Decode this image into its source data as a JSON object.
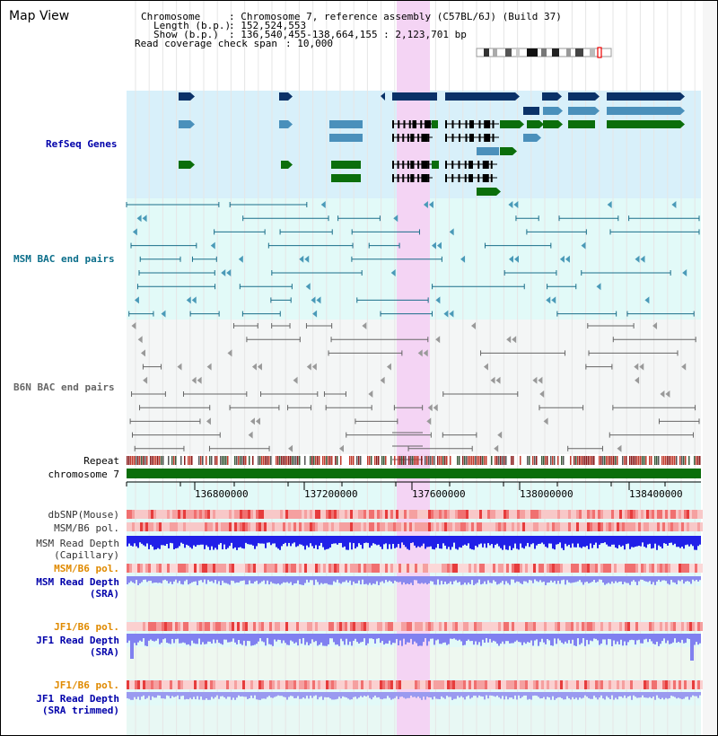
{
  "view": {
    "title": "Map View"
  },
  "info": {
    "chromosome_label": "Chromosome",
    "chromosome_value": ": Chromosome 7, reference assembly (C57BL/6J) (Build 37)",
    "length_label": "Length (b.p.)",
    "length_value": ": 152,524,553",
    "show_label": "Show (b.p.)",
    "show_value": ": 136,540,455-138,664,155 : 2,123,701 bp",
    "coverage_label": "Read coverage check span",
    "coverage_value": ": 10,000"
  },
  "tracks": {
    "refseq": "RefSeq Genes",
    "msm_bac": "MSM BAC end pairs",
    "b6n_bac": "B6N BAC end pairs",
    "repeat": "Repeat",
    "chromosome": "chromosome 7",
    "dbsnp": "dbSNP(Mouse)",
    "msm_b6_pol": "MSM/B6 pol.",
    "msm_depth_cap_1": "MSM Read Depth",
    "msm_depth_cap_2": "(Capillary)",
    "msm_b6_pol_sra": "MSM/B6 pol.",
    "msm_depth_sra_1": "MSM Read Depth",
    "msm_depth_sra_2": "(SRA)",
    "jf1_b6_pol": "JF1/B6 pol.",
    "jf1_depth_1": "JF1 Read Depth",
    "jf1_depth_2": "(SRA)",
    "jf1_b6_pol_t": "JF1/B6 pol.",
    "jf1_depth_t_1": "JF1 Read Depth",
    "jf1_depth_t_2": "(SRA trimmed)"
  },
  "axis": {
    "ticks": [
      "136800000",
      "137200000",
      "137600000",
      "138000000",
      "138400000"
    ]
  },
  "colors": {
    "refseq_bg": "#d8f0fa",
    "msm_bg": "#e2faf8",
    "b6n_bg": "#f4f6f6",
    "highlight": "#f4d4f4",
    "gene_dark": "#0b3268",
    "gene_mid": "#4a90bb",
    "gene_green": "#0b6e0b",
    "msm_pair": "#1a6e8a",
    "b6n_pair": "#666666",
    "depth_blue": "#2020e8",
    "depth_lav": "#8080f0",
    "label_blue": "#0000aa",
    "label_orange": "#e08a00"
  }
}
